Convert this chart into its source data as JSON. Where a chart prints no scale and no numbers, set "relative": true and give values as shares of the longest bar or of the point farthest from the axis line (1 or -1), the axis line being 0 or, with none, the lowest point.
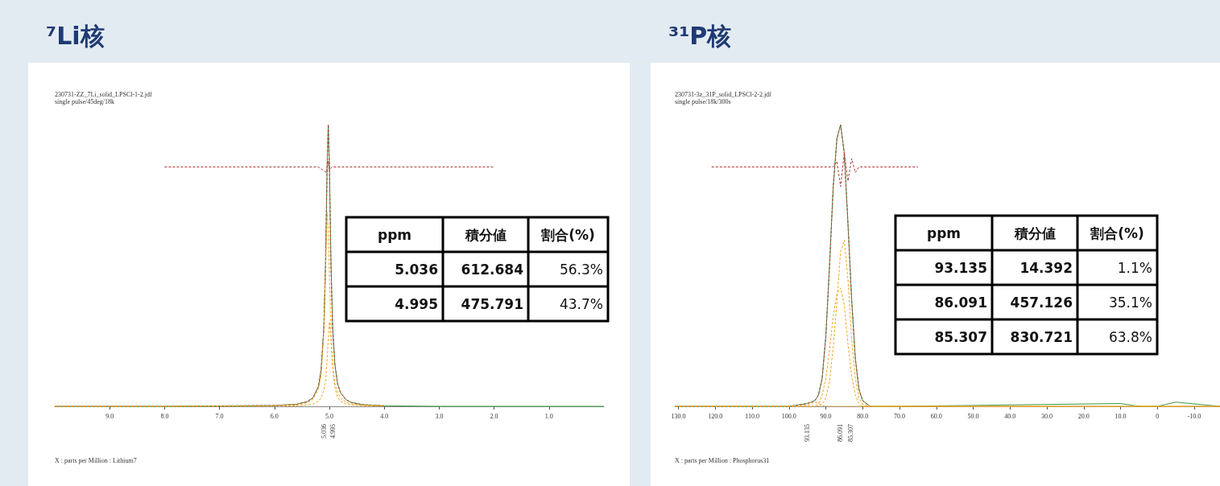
{
  "chart_data": [
    {
      "type": "line",
      "title": "⁷Li核",
      "xlabel": "X : parts per Million : Lithium7",
      "relative": true,
      "grid": false,
      "marker": "none",
      "xlim": [
        10,
        0
      ],
      "xticks": [
        {
          "value": 9,
          "label": "9.0"
        },
        {
          "value": 8,
          "label": "8.0"
        },
        {
          "value": 7,
          "label": "7.0"
        },
        {
          "value": 6,
          "label": "6.0"
        },
        {
          "value": 5,
          "label": "5.0"
        },
        {
          "value": 4,
          "label": "4.0"
        },
        {
          "value": 3,
          "label": "3.0"
        },
        {
          "value": 2,
          "label": "2.0"
        },
        {
          "value": 1,
          "label": "1.0"
        }
      ],
      "x": [
        10,
        8,
        6,
        5.6,
        5.4,
        5.3,
        5.2,
        5.15,
        5.1,
        5.07,
        5.04,
        5.02,
        5.0,
        4.97,
        4.94,
        4.9,
        4.85,
        4.8,
        4.7,
        4.6,
        4.4,
        4,
        3,
        0
      ],
      "series": [
        {
          "color": "#3c9a3c",
          "line_style": "solid",
          "values": [
            0,
            0,
            0.003,
            0.007,
            0.017,
            0.03,
            0.07,
            0.13,
            0.28,
            0.5,
            0.86,
            1,
            0.86,
            0.5,
            0.28,
            0.15,
            0.08,
            0.05,
            0.024,
            0.014,
            0.006,
            0.002,
            0,
            0
          ]
        },
        {
          "color": "#b03a3a",
          "line_style": "dashed",
          "values": [
            0,
            0,
            0.003,
            0.007,
            0.017,
            0.03,
            0.07,
            0.13,
            0.28,
            0.5,
            0.86,
            1,
            0.86,
            0.5,
            0.28,
            0.15,
            0.08,
            0.05,
            0.024,
            0.014,
            0.006,
            0.002,
            null,
            null
          ]
        },
        {
          "color": "#f5a623",
          "line_style": "dashed",
          "values": [
            0,
            0,
            0.002,
            0.005,
            0.013,
            0.024,
            0.06,
            0.11,
            0.27,
            0.48,
            0.69,
            0.63,
            0.46,
            0.26,
            0.15,
            0.08,
            0.05,
            0.03,
            0.015,
            0.009,
            0.004,
            0.002,
            null,
            null
          ]
        },
        {
          "color": "#f5a623",
          "line_style": "dashed",
          "values": [
            0,
            0,
            0.001,
            0.002,
            0.005,
            0.008,
            0.018,
            0.03,
            0.056,
            0.09,
            0.17,
            0.24,
            0.3,
            0.24,
            0.14,
            0.065,
            0.032,
            0.018,
            0.009,
            0.005,
            0.002,
            0.001,
            null,
            null
          ]
        },
        {
          "color": "#b03a3a",
          "line_style": "dashed",
          "x": [
            8,
            5.2,
            5.05,
            5.02,
            5.0,
            4.95,
            4.8,
            2
          ],
          "values": [
            0.85,
            0.85,
            0.83,
            0.87,
            0.84,
            0.85,
            0.85,
            0.85
          ]
        }
      ],
      "annotations": [
        "230731-ZZ_7Li_solid_LPSCl-1-2.jdf",
        "single pulse/45deg/18k",
        "5.036",
        "4.995",
        "ppm",
        "積分値",
        "割合(%)",
        "5.036",
        "612.684",
        "56.3%",
        "4.995",
        "475.791",
        "43.7%"
      ]
    },
    {
      "type": "line",
      "title": "³¹P核",
      "xlabel": "X : parts per Million : Phosphorus31",
      "relative": true,
      "grid": false,
      "marker": "none",
      "xlim": [
        131,
        -17
      ],
      "xticks": [
        {
          "value": 130,
          "label": "130.0"
        },
        {
          "value": 120,
          "label": "120.0"
        },
        {
          "value": 110,
          "label": "110.0"
        },
        {
          "value": 100,
          "label": "100.0"
        },
        {
          "value": 90,
          "label": "90.0"
        },
        {
          "value": 80,
          "label": "80.0"
        },
        {
          "value": 70,
          "label": "70.0"
        },
        {
          "value": 60,
          "label": "60.0"
        },
        {
          "value": 50,
          "label": "50.0"
        },
        {
          "value": 40,
          "label": "40.0"
        },
        {
          "value": 30,
          "label": "30.0"
        },
        {
          "value": 20,
          "label": "20.0"
        },
        {
          "value": 10,
          "label": "10.0"
        },
        0,
        {
          "value": -10,
          "label": "-10.0"
        }
      ],
      "x": [
        131,
        100,
        95,
        93,
        92,
        91,
        90,
        89,
        88,
        87,
        86,
        85,
        84,
        83,
        82,
        81,
        80,
        78,
        70,
        10,
        5,
        0,
        -5,
        -17
      ],
      "series": [
        {
          "color": "#3c9a3c",
          "line_style": "solid",
          "values": [
            0,
            0,
            0.01,
            0.02,
            0.04,
            0.1,
            0.25,
            0.5,
            0.78,
            0.95,
            1,
            0.9,
            0.65,
            0.38,
            0.17,
            0.06,
            0.02,
            0,
            0,
            0.01,
            0,
            0,
            0.015,
            0
          ]
        },
        {
          "color": "#b03a3a",
          "line_style": "dashed",
          "values": [
            0,
            0,
            0.01,
            0.02,
            0.04,
            0.1,
            0.25,
            0.5,
            0.78,
            0.95,
            1,
            0.9,
            0.65,
            0.38,
            0.17,
            0.06,
            0.02,
            0,
            null,
            null,
            null,
            null,
            null,
            null
          ]
        },
        {
          "color": "#f5a623",
          "line_style": "dashed",
          "values": [
            0,
            0,
            0,
            0,
            0.001,
            0.007,
            0.03,
            0.09,
            0.21,
            0.37,
            0.55,
            0.59,
            0.45,
            0.24,
            0.1,
            0.03,
            0.007,
            0,
            0,
            0,
            0,
            0,
            0,
            0
          ]
        },
        {
          "color": "#f5a623",
          "line_style": "dashed",
          "values": [
            0,
            0,
            0,
            0,
            0.01,
            0.04,
            0.1,
            0.2,
            0.32,
            0.4,
            0.42,
            0.36,
            0.22,
            0.11,
            0.04,
            0.01,
            0,
            0,
            0,
            0,
            0,
            0,
            0,
            0
          ]
        },
        {
          "color": "#f5a623",
          "line_style": "dashed",
          "values": [
            0,
            0,
            0.004,
            0.015,
            0.01,
            0.003,
            0,
            0,
            0,
            0,
            0,
            0,
            0,
            0,
            0,
            0,
            0,
            0,
            0,
            0,
            0,
            0,
            0,
            0
          ]
        },
        {
          "color": "#b03a3a",
          "line_style": "dashed",
          "x": [
            121,
            88,
            87,
            86,
            85,
            84,
            83,
            82,
            81,
            65
          ],
          "values": [
            0.85,
            0.85,
            0.87,
            0.78,
            0.9,
            0.8,
            0.88,
            0.83,
            0.85,
            0.85
          ]
        }
      ],
      "annotations": [
        "230731-3z_31P_solid_LPSCl-2-2.jdf",
        "single pulse/18k/300s",
        "93.135",
        "86.091",
        "85.307",
        "ppm",
        "積分値",
        "割合(%)",
        "93.135",
        "14.392",
        "1.1%",
        "86.091",
        "457.126",
        "35.1%",
        "85.307",
        "830.721",
        "63.8%"
      ]
    }
  ]
}
